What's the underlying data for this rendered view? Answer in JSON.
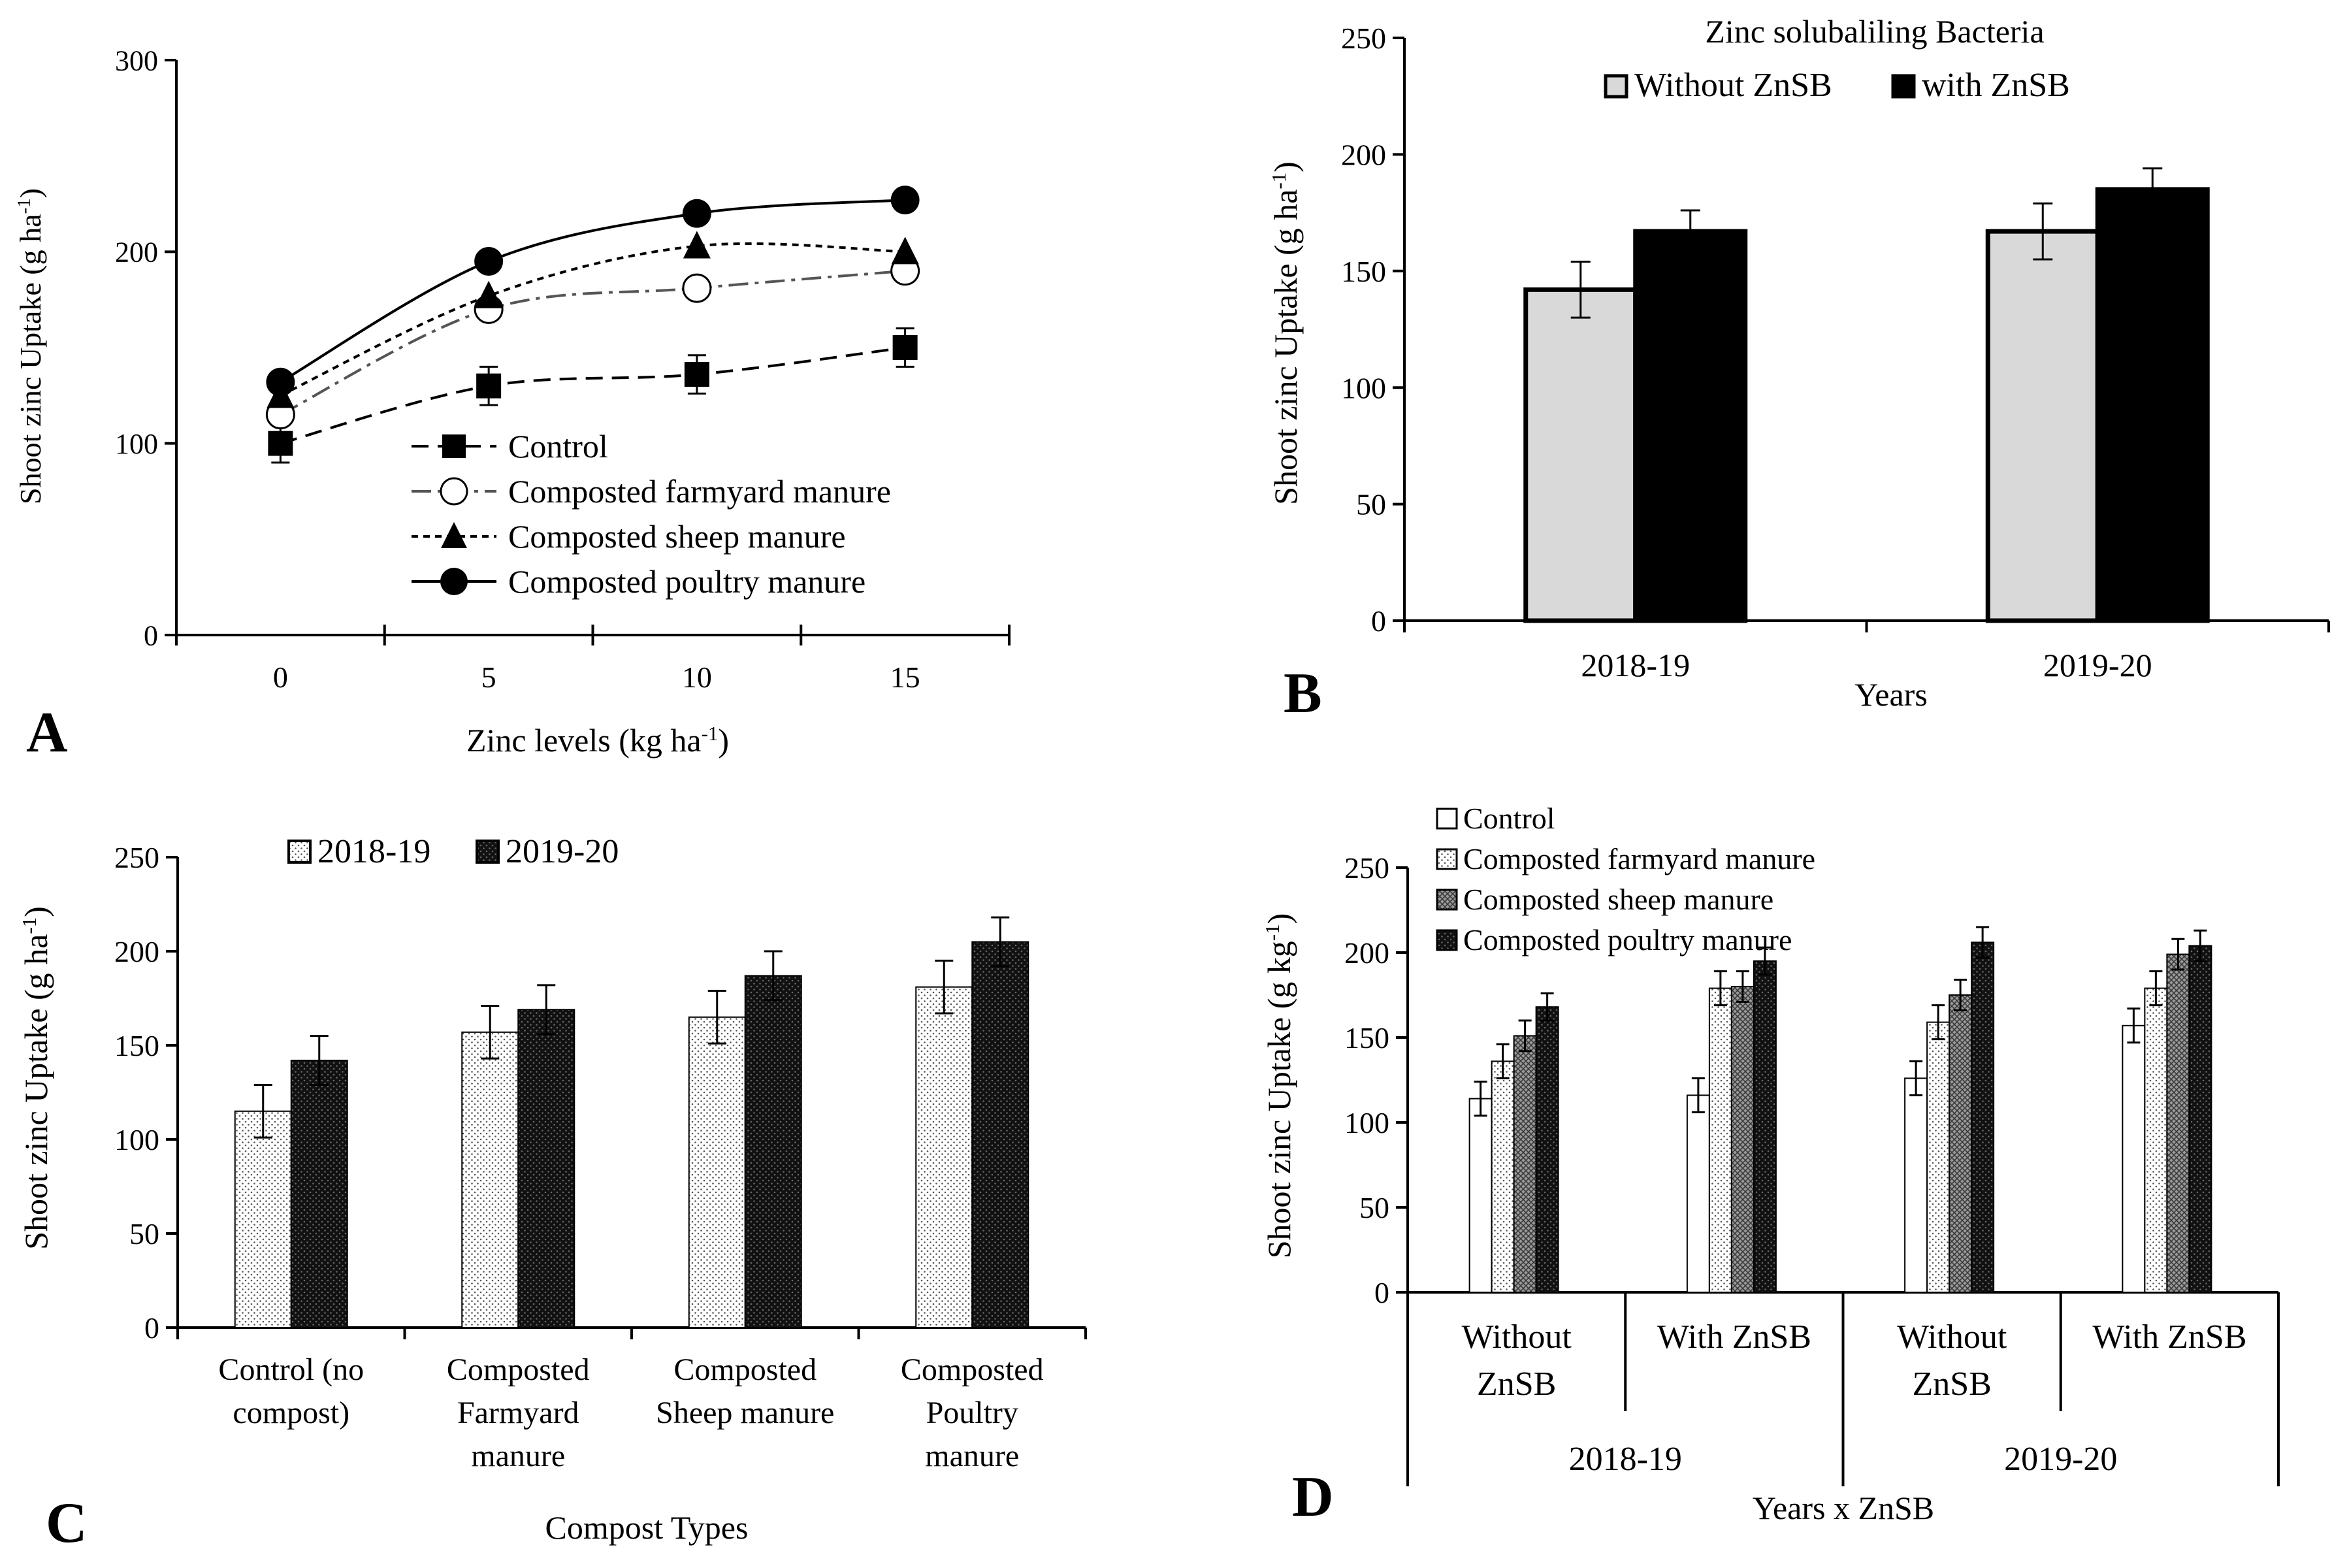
{
  "chart_data": [
    {
      "panel": "A",
      "type": "line",
      "title": "",
      "xlabel": "Zinc levels (kg ha",
      "xlabel_sup": "-1",
      "xlabel_tail": ")",
      "ylabel": "Shoot zinc Uptake (g ha",
      "ylabel_sup": "-1",
      "ylabel_tail": ")",
      "x": [
        0,
        5,
        10,
        15
      ],
      "x_ticks": [
        "0",
        "5",
        "10",
        "15"
      ],
      "xlim": [
        -2.5,
        17.5
      ],
      "ylim": [
        0,
        300
      ],
      "y_ticks": [
        "0",
        "100",
        "200",
        "300"
      ],
      "legend_position": "bottom-right",
      "series": [
        {
          "name": "Control",
          "marker": "square",
          "dash": "long-dash",
          "values": [
            100,
            130,
            136,
            150
          ],
          "errors": [
            10,
            10,
            10,
            10
          ]
        },
        {
          "name": "Composted farmyard manure",
          "marker": "open-circle",
          "dash": "dash-dot",
          "values": [
            115,
            170,
            181,
            190
          ],
          "errors": [
            0,
            0,
            0,
            0
          ]
        },
        {
          "name": "Composted sheep manure",
          "marker": "triangle",
          "dash": "short-dash",
          "values": [
            125,
            177,
            203,
            200
          ],
          "errors": [
            0,
            0,
            0,
            0
          ]
        },
        {
          "name": "Composted poultry manure",
          "marker": "filled-circle",
          "dash": "solid",
          "values": [
            132,
            195,
            220,
            227
          ],
          "errors": [
            0,
            0,
            0,
            0
          ]
        }
      ]
    },
    {
      "panel": "B",
      "type": "bar",
      "legend_title": "Zinc solubaliling Bacteria",
      "categories": [
        "2018-19",
        "2019-20"
      ],
      "xlabel": "Years",
      "ylabel": "Shoot zinc Uptake (g ha",
      "ylabel_sup": "-1",
      "ylabel_tail": ")",
      "ylim": [
        0,
        250
      ],
      "y_ticks": [
        "0",
        "50",
        "100",
        "150",
        "200",
        "250"
      ],
      "legend_position": "top-center",
      "series": [
        {
          "name": "Without ZnSB",
          "fill": "#d9d9d9",
          "values": [
            142,
            167
          ],
          "errors": [
            12,
            12
          ]
        },
        {
          "name": "with ZnSB",
          "fill": "#000000",
          "values": [
            167,
            185
          ],
          "errors": [
            9,
            9
          ]
        }
      ]
    },
    {
      "panel": "C",
      "type": "bar",
      "categories": [
        [
          "Control (no",
          "compost)"
        ],
        [
          "Composted",
          "Farmyard",
          "manure"
        ],
        [
          "Composted",
          "Sheep manure"
        ],
        [
          "Composted",
          "Poultry",
          "manure"
        ]
      ],
      "xlabel": "Compost Types",
      "ylabel": "Shoot zinc Uptake (g ha",
      "ylabel_sup": "-1",
      "ylabel_tail": ")",
      "ylim": [
        0,
        250
      ],
      "y_ticks": [
        "0",
        "50",
        "100",
        "150",
        "200",
        "250"
      ],
      "legend_position": "top-left",
      "series": [
        {
          "name": "2018-19",
          "fill": "light-dotted",
          "values": [
            115,
            157,
            165,
            181
          ],
          "errors": [
            14,
            14,
            14,
            14
          ]
        },
        {
          "name": "2019-20",
          "fill": "dark-dotted",
          "values": [
            142,
            169,
            187,
            205
          ],
          "errors": [
            13,
            13,
            13,
            13
          ]
        }
      ]
    },
    {
      "panel": "D",
      "type": "bar",
      "categories": [
        [
          "Without",
          "ZnSB"
        ],
        [
          "With ZnSB"
        ],
        [
          "Without",
          "ZnSB"
        ],
        [
          "With ZnSB"
        ]
      ],
      "groups": [
        "2018-19",
        "2019-20"
      ],
      "xlabel": "Years x ZnSB",
      "ylabel": "Shoot zinc Uptake (g kg",
      "ylabel_sup": "-1",
      "ylabel_tail": ")",
      "ylim": [
        0,
        250
      ],
      "y_ticks": [
        "0",
        "50",
        "100",
        "150",
        "200",
        "250"
      ],
      "legend_position": "top-left",
      "series": [
        {
          "name": "Control",
          "fill": "white",
          "values": [
            114,
            116,
            126,
            157
          ],
          "errors": [
            10,
            10,
            10,
            10
          ]
        },
        {
          "name": "Composted farmyard manure",
          "fill": "light-dotted",
          "values": [
            136,
            179,
            159,
            179
          ],
          "errors": [
            10,
            10,
            10,
            10
          ]
        },
        {
          "name": "Composted sheep manure",
          "fill": "grey-hatch",
          "values": [
            151,
            180,
            175,
            199
          ],
          "errors": [
            9,
            9,
            9,
            9
          ]
        },
        {
          "name": "Composted poultry manure",
          "fill": "dark-dotted",
          "values": [
            168,
            195,
            206,
            204
          ],
          "errors": [
            8,
            8,
            9,
            9
          ]
        }
      ]
    }
  ]
}
